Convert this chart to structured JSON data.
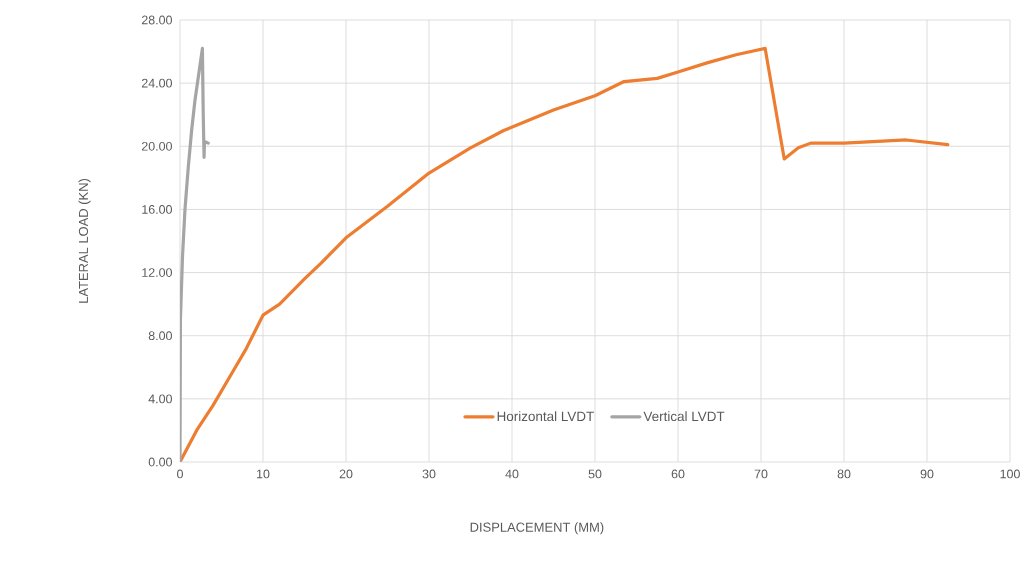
{
  "chart_data": {
    "type": "line",
    "xlabel": "DISPLACEMENT (MM)",
    "ylabel": "LATERAL LOAD (KN)",
    "xlim": [
      0,
      100
    ],
    "xticks": [
      0,
      10,
      20,
      30,
      40,
      50,
      60,
      70,
      80,
      90,
      100
    ],
    "ylim": [
      0,
      28
    ],
    "yticks": [
      {
        "value": 0,
        "label": "0.00"
      },
      {
        "value": 4,
        "label": "4.00"
      },
      {
        "value": 8,
        "label": "8.00"
      },
      {
        "value": 12,
        "label": "12.00"
      },
      {
        "value": 16,
        "label": "16.00"
      },
      {
        "value": 20,
        "label": "20.00"
      },
      {
        "value": 24,
        "label": "24.00"
      },
      {
        "value": 28,
        "label": "28.00"
      }
    ],
    "grid": true,
    "legend": "bottom",
    "marker": "none",
    "line_style": "solid",
    "series": [
      {
        "name": "Horizontal LVDT",
        "color": "#ed7d31",
        "x": [
          0,
          2,
          4,
          6,
          8,
          10,
          12,
          15,
          17,
          20,
          25,
          30,
          35,
          39,
          45,
          50,
          53.5,
          57.5,
          60,
          63.6,
          67,
          70.5,
          72.8,
          74.5,
          76,
          80,
          87.5,
          92.5
        ],
        "values": [
          0,
          2,
          3.6,
          5.4,
          7.2,
          9.3,
          10,
          11.6,
          12.6,
          14.2,
          16.2,
          18.3,
          19.9,
          21.0,
          22.3,
          23.2,
          24.1,
          24.3,
          24.7,
          25.3,
          25.8,
          26.2,
          19.2,
          19.9,
          20.2,
          20.2,
          20.4,
          20.1
        ]
      },
      {
        "name": "Vertical LVDT",
        "color": "#a5a5a5",
        "x": [
          0,
          0.05,
          0.3,
          0.6,
          1,
          1.4,
          1.8,
          2.7,
          2.8,
          2.9,
          2.95,
          3.4
        ],
        "values": [
          0,
          9,
          13,
          16,
          18.7,
          21,
          22.9,
          26.2,
          22,
          19.3,
          20.3,
          20.2
        ]
      }
    ]
  }
}
